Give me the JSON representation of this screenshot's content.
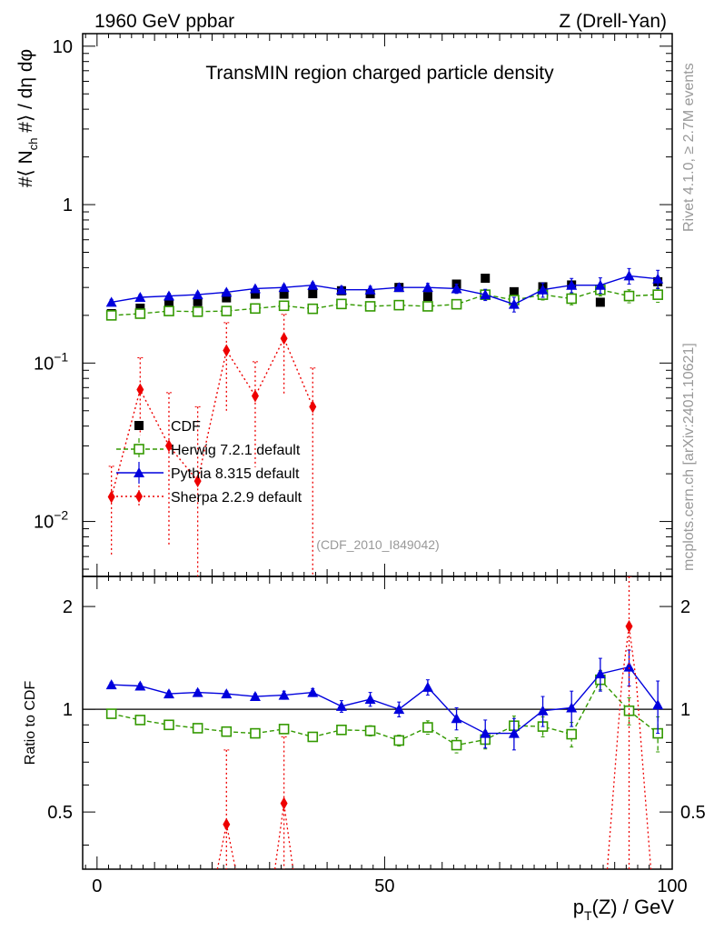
{
  "header": {
    "left": "1960 GeV ppbar",
    "right": "Z (Drell-Yan)"
  },
  "side_labels": {
    "rivet": "Rivet 4.1.0, ≥ 2.7M events",
    "mcplots": "mcplots.cern.ch [arXiv:2401.10621]"
  },
  "watermark": "(CDF_2010_I849042)",
  "colors": {
    "data": "#000000",
    "herwig": "#339900",
    "pythia": "#0000dd",
    "sherpa": "#ee0000",
    "side_text": "#999999"
  },
  "chart_data": [
    {
      "type": "scatter",
      "title": "TransMIN region charged particle density",
      "xlabel": "p_T(Z) / GeV",
      "ylabel": "#⟨ N_ch #⟩ / dη dφ",
      "yscale": "log",
      "xlim": [
        -2.5,
        100
      ],
      "ylim": [
        0.0045,
        12
      ],
      "xticks": [
        0,
        50,
        100
      ],
      "yticks": [
        {
          "value": 0.01,
          "label": "10",
          "exp": "−2"
        },
        {
          "value": 0.1,
          "label": "10",
          "exp": "−1"
        },
        {
          "value": 1,
          "label": "1",
          "exp": ""
        },
        {
          "value": 10,
          "label": "10",
          "exp": ""
        }
      ],
      "x": [
        2.5,
        7.5,
        12.5,
        17.5,
        22.5,
        27.5,
        32.5,
        37.5,
        42.5,
        47.5,
        52.5,
        57.5,
        62.5,
        67.5,
        72.5,
        77.5,
        82.5,
        87.5,
        92.5,
        97.5
      ],
      "legend_position": "lower-left",
      "series": [
        {
          "name": "CDF",
          "style": "data",
          "values": [
            0.205,
            0.222,
            0.238,
            0.244,
            0.258,
            0.272,
            0.272,
            0.274,
            0.286,
            0.274,
            0.3,
            0.263,
            0.315,
            0.343,
            0.282,
            0.303,
            0.311,
            0.242,
            0.263,
            0.326
          ]
        },
        {
          "name": "Herwig 7.2.1 default",
          "style": "herwig",
          "values": [
            0.2,
            0.205,
            0.213,
            0.211,
            0.213,
            0.221,
            0.23,
            0.22,
            0.236,
            0.228,
            0.232,
            0.228,
            0.235,
            0.27,
            0.25,
            0.27,
            0.255,
            0.29,
            0.265,
            0.27
          ],
          "errors": [
            0.01,
            0.01,
            0.01,
            0.01,
            0.01,
            0.01,
            0.01,
            0.01,
            0.012,
            0.012,
            0.012,
            0.012,
            0.015,
            0.018,
            0.018,
            0.02,
            0.022,
            0.025,
            0.025,
            0.028
          ]
        },
        {
          "name": "Pythia 8.315 default",
          "style": "pythia",
          "values": [
            0.242,
            0.26,
            0.265,
            0.27,
            0.28,
            0.295,
            0.3,
            0.31,
            0.29,
            0.29,
            0.3,
            0.3,
            0.295,
            0.27,
            0.235,
            0.29,
            0.31,
            0.31,
            0.355,
            0.34
          ],
          "errors": [
            0.01,
            0.01,
            0.01,
            0.01,
            0.01,
            0.01,
            0.012,
            0.012,
            0.015,
            0.015,
            0.015,
            0.018,
            0.02,
            0.022,
            0.025,
            0.03,
            0.032,
            0.035,
            0.04,
            0.045
          ]
        },
        {
          "name": "Sherpa 2.2.9 default",
          "style": "sherpa",
          "x": [
            2.5,
            7.5,
            12.5,
            17.5,
            22.5,
            27.5,
            32.5,
            37.5
          ],
          "values": [
            0.0143,
            0.068,
            0.03,
            0.018,
            0.12,
            0.062,
            0.143,
            0.053
          ],
          "err_low": [
            0.0083,
            0.033,
            0.023,
            0.016,
            0.07,
            0.04,
            0.08,
            0.05
          ],
          "err_high": [
            0.008,
            0.04,
            0.035,
            0.035,
            0.06,
            0.04,
            0.06,
            0.04
          ]
        }
      ]
    },
    {
      "type": "scatter",
      "ylabel": "Ratio to CDF",
      "xlabel": "p_T(Z) / GeV",
      "xlim": [
        -2.5,
        100
      ],
      "ylim": [
        0.34,
        2.45
      ],
      "yscale": "log",
      "yticks": [
        {
          "value": 0.5,
          "label": "0.5"
        },
        {
          "value": 1,
          "label": "1"
        },
        {
          "value": 2,
          "label": "2"
        }
      ],
      "x": [
        2.5,
        7.5,
        12.5,
        17.5,
        22.5,
        27.5,
        32.5,
        37.5,
        42.5,
        47.5,
        52.5,
        57.5,
        62.5,
        67.5,
        72.5,
        77.5,
        82.5,
        87.5,
        92.5,
        97.5
      ],
      "series": [
        {
          "name": "Herwig 7.2.1 default",
          "style": "herwig",
          "values": [
            0.97,
            0.93,
            0.9,
            0.88,
            0.86,
            0.85,
            0.875,
            0.83,
            0.87,
            0.865,
            0.81,
            0.885,
            0.785,
            0.815,
            0.895,
            0.89,
            0.845,
            1.22,
            0.99,
            0.85
          ],
          "errors": [
            0.02,
            0.02,
            0.02,
            0.02,
            0.02,
            0.02,
            0.02,
            0.02,
            0.025,
            0.03,
            0.03,
            0.04,
            0.04,
            0.05,
            0.06,
            0.06,
            0.07,
            0.08,
            0.09,
            0.1
          ]
        },
        {
          "name": "Pythia 8.315 default",
          "style": "pythia",
          "values": [
            1.18,
            1.17,
            1.11,
            1.12,
            1.11,
            1.09,
            1.1,
            1.12,
            1.02,
            1.07,
            1.0,
            1.16,
            0.94,
            0.85,
            0.85,
            0.99,
            1.01,
            1.27,
            1.33,
            1.03
          ],
          "errors": [
            0.02,
            0.02,
            0.02,
            0.02,
            0.02,
            0.02,
            0.03,
            0.03,
            0.04,
            0.05,
            0.05,
            0.06,
            0.07,
            0.08,
            0.09,
            0.1,
            0.12,
            0.14,
            0.16,
            0.18
          ]
        },
        {
          "name": "Sherpa 2.2.9 default",
          "style": "sherpa",
          "x": [
            22.5,
            32.5,
            92.5
          ],
          "values": [
            0.46,
            0.53,
            1.75
          ],
          "err_low": [
            0.2,
            0.2,
            0.6
          ],
          "err_high": [
            0.3,
            0.3,
            0.7
          ]
        }
      ]
    }
  ]
}
